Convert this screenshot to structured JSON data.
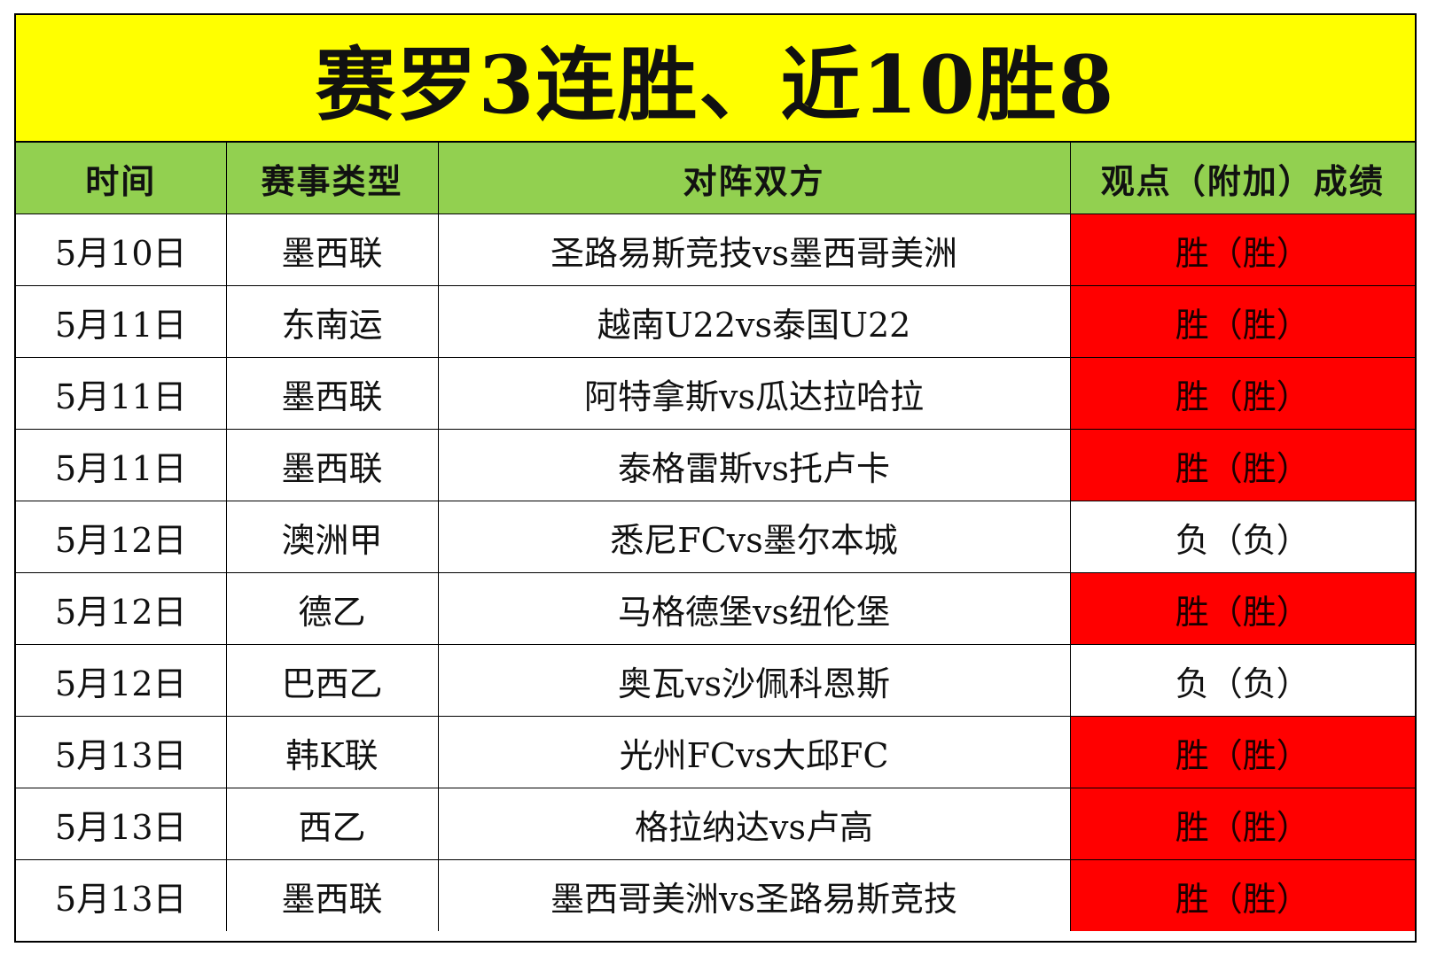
{
  "title": "赛罗3连胜、近10胜8",
  "headers": [
    "时间",
    "赛事类型",
    "对阵双方",
    "观点（附加）成绩"
  ],
  "colors": {
    "title_bg": "#ffff00",
    "header_bg": "#92d050",
    "win_bg": "#ff0000",
    "loss_bg": "#ffffff"
  },
  "rows": [
    {
      "date": "5月10日",
      "league": "墨西联",
      "match": "圣路易斯竞技vs墨西哥美洲",
      "result": "胜（胜）",
      "win": true
    },
    {
      "date": "5月11日",
      "league": "东南运",
      "match": "越南U22vs泰国U22",
      "result": "胜（胜）",
      "win": true
    },
    {
      "date": "5月11日",
      "league": "墨西联",
      "match": "阿特拿斯vs瓜达拉哈拉",
      "result": "胜（胜）",
      "win": true
    },
    {
      "date": "5月11日",
      "league": "墨西联",
      "match": "泰格雷斯vs托卢卡",
      "result": "胜（胜）",
      "win": true
    },
    {
      "date": "5月12日",
      "league": "澳洲甲",
      "match": "悉尼FCvs墨尔本城",
      "result": "负（负）",
      "win": false
    },
    {
      "date": "5月12日",
      "league": "德乙",
      "match": "马格德堡vs纽伦堡",
      "result": "胜（胜）",
      "win": true
    },
    {
      "date": "5月12日",
      "league": "巴西乙",
      "match": "奥瓦vs沙佩科恩斯",
      "result": "负（负）",
      "win": false
    },
    {
      "date": "5月13日",
      "league": "韩K联",
      "match": "光州FCvs大邱FC",
      "result": "胜（胜）",
      "win": true
    },
    {
      "date": "5月13日",
      "league": "西乙",
      "match": "格拉纳达vs卢高",
      "result": "胜（胜）",
      "win": true
    },
    {
      "date": "5月13日",
      "league": "墨西联",
      "match": "墨西哥美洲vs圣路易斯竞技",
      "result": "胜（胜）",
      "win": true
    }
  ]
}
